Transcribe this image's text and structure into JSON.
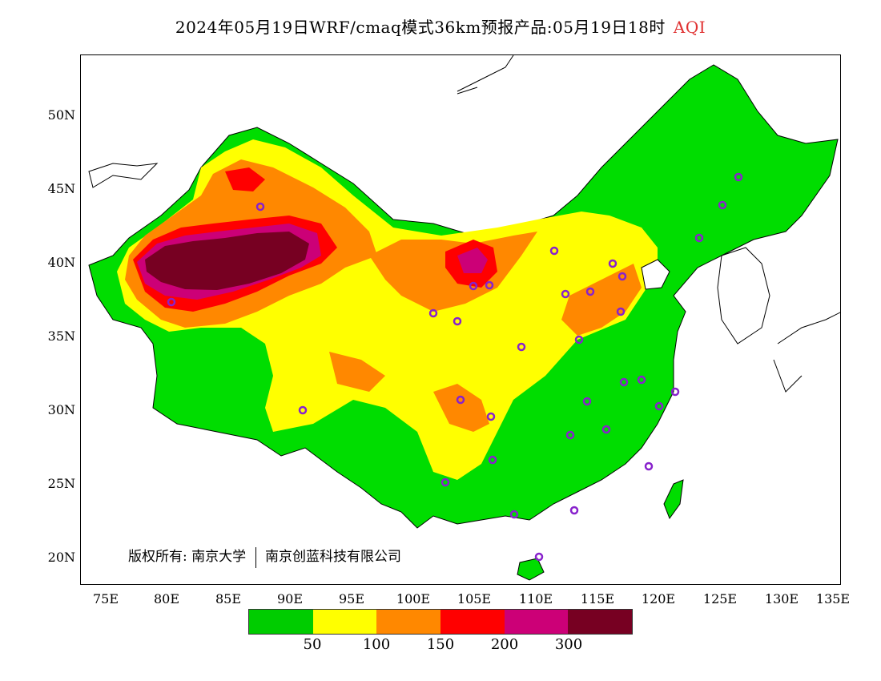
{
  "title": {
    "main": "2024年05月19日WRF/cmaq模式36km预报产品:05月19日18时",
    "variable": "AQI"
  },
  "y_axis_labels": [
    "50N",
    "45N",
    "40N",
    "35N",
    "30N",
    "25N",
    "20N"
  ],
  "x_axis_labels": [
    "75E",
    "80E",
    "85E",
    "90E",
    "95E",
    "100E",
    "105E",
    "110E",
    "115E",
    "120E",
    "125E",
    "130E",
    "135E"
  ],
  "copyright": {
    "text": "版权所有: 南京大学",
    "text2": "南京创蓝科技有限公司"
  },
  "legend": {
    "colors": [
      "#00cc00",
      "#ffff00",
      "#ff8800",
      "#ff0000",
      "#cc0077",
      "#770022"
    ],
    "ticks": [
      "50",
      "100",
      "150",
      "200",
      "300"
    ]
  },
  "colors": {
    "good": "#00dd00",
    "moderate": "#ffff00",
    "usg": "#ff8800",
    "unhealthy": "#ff0000",
    "very_unhealthy": "#cc0077",
    "hazardous": "#770022",
    "station_marker": "#8822cc"
  }
}
